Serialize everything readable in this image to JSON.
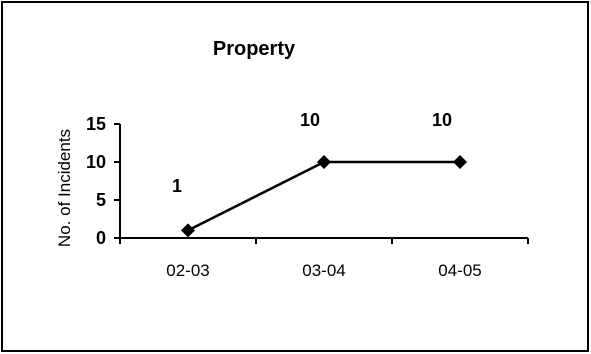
{
  "chart_data": {
    "type": "line",
    "title": "Property",
    "xlabel": "",
    "ylabel": "No. of Incidents",
    "categories": [
      "02-03",
      "03-04",
      "04-05"
    ],
    "series": [
      {
        "values": [
          1,
          10,
          10
        ]
      }
    ],
    "data_labels": [
      "1",
      "10",
      "10"
    ],
    "ylim": [
      0,
      15
    ],
    "yticks": [
      0,
      5,
      10,
      15
    ],
    "ytick_labels": [
      "0",
      "5",
      "10",
      "15"
    ],
    "grid": false,
    "marker": "diamond",
    "line_color": "#000000"
  }
}
